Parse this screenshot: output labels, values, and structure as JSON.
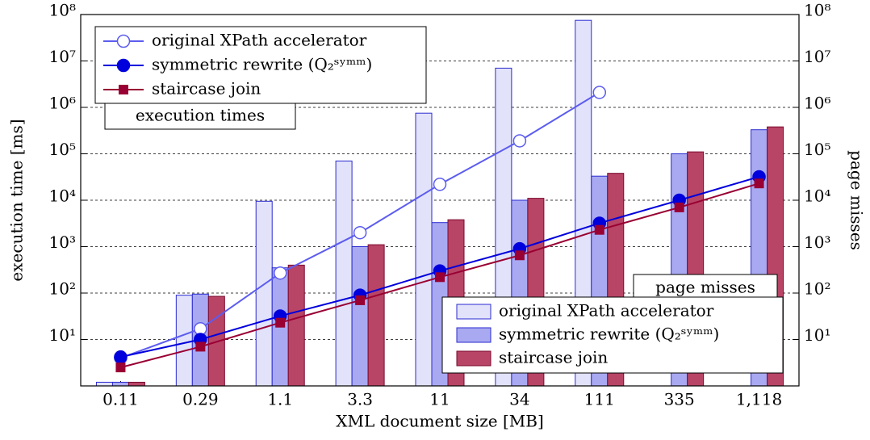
{
  "chart_data": [
    {
      "type": "line",
      "legend_title": "execution times",
      "legend": "top-left",
      "categories": [
        "0.11",
        "0.29",
        "1.1",
        "3.3",
        "11",
        "34",
        "111",
        "335",
        "1,118"
      ],
      "xlabel": "XML document size [MB]",
      "ylabel": "execution time [ms]",
      "log_scale": true,
      "grid": true,
      "ylim": [
        1,
        100000000
      ],
      "yticks": [
        {
          "value": 10,
          "label": "10¹"
        },
        {
          "value": 100,
          "label": "10²"
        },
        {
          "value": 1000,
          "label": "10³"
        },
        {
          "value": 10000,
          "label": "10⁴"
        },
        {
          "value": 100000,
          "label": "10⁵"
        },
        {
          "value": 1000000,
          "label": "10⁶"
        },
        {
          "value": 10000000,
          "label": "10⁷"
        },
        {
          "value": 100000000,
          "label": "10⁸"
        }
      ],
      "series": [
        {
          "name": "original XPath accelerator",
          "color": "#5c5cf0",
          "marker": "open-circle",
          "values": [
            4,
            17,
            270,
            2000,
            22000,
            190000,
            2100000,
            null,
            null
          ]
        },
        {
          "name": "symmetric rewrite (Q₂ˢʸᵐᵐ)",
          "color": "#0000dd",
          "marker": "circle",
          "values": [
            4.2,
            10,
            32,
            90,
            300,
            900,
            3200,
            10000,
            32000
          ]
        },
        {
          "name": "staircase join",
          "color": "#990033",
          "marker": "square",
          "values": [
            2.5,
            7,
            23,
            70,
            220,
            650,
            2300,
            7000,
            23000
          ]
        }
      ]
    },
    {
      "type": "bar",
      "legend_title": "page misses",
      "legend": "bottom-right",
      "y2label": "page misses",
      "log_scale": true,
      "y2lim": [
        1,
        100000000
      ],
      "y2ticks": [
        {
          "value": 10,
          "label": "10¹"
        },
        {
          "value": 100,
          "label": "10²"
        },
        {
          "value": 1000,
          "label": "10³"
        },
        {
          "value": 10000,
          "label": "10⁴"
        },
        {
          "value": 100000,
          "label": "10⁵"
        },
        {
          "value": 1000000,
          "label": "10⁶"
        },
        {
          "value": 10000000,
          "label": "10⁷"
        },
        {
          "value": 100000000,
          "label": "10⁸"
        }
      ],
      "series": [
        {
          "name": "original XPath accelerator",
          "color": "#e2e2fb",
          "axis": "y2",
          "values": [
            1.2,
            90,
            9500,
            70000,
            750000,
            7000000,
            75000000,
            null,
            null
          ]
        },
        {
          "name": "symmetric rewrite (Q₂ˢʸᵐᵐ)",
          "color": "#a9a9f2",
          "axis": "y2",
          "values": [
            1.2,
            95,
            350,
            1000,
            3300,
            10000,
            33000,
            100000,
            330000
          ]
        },
        {
          "name": "staircase join",
          "color": "#b84466",
          "axis": "y2",
          "values": [
            1.2,
            85,
            400,
            1100,
            3800,
            11000,
            38000,
            110000,
            380000
          ]
        }
      ]
    }
  ]
}
